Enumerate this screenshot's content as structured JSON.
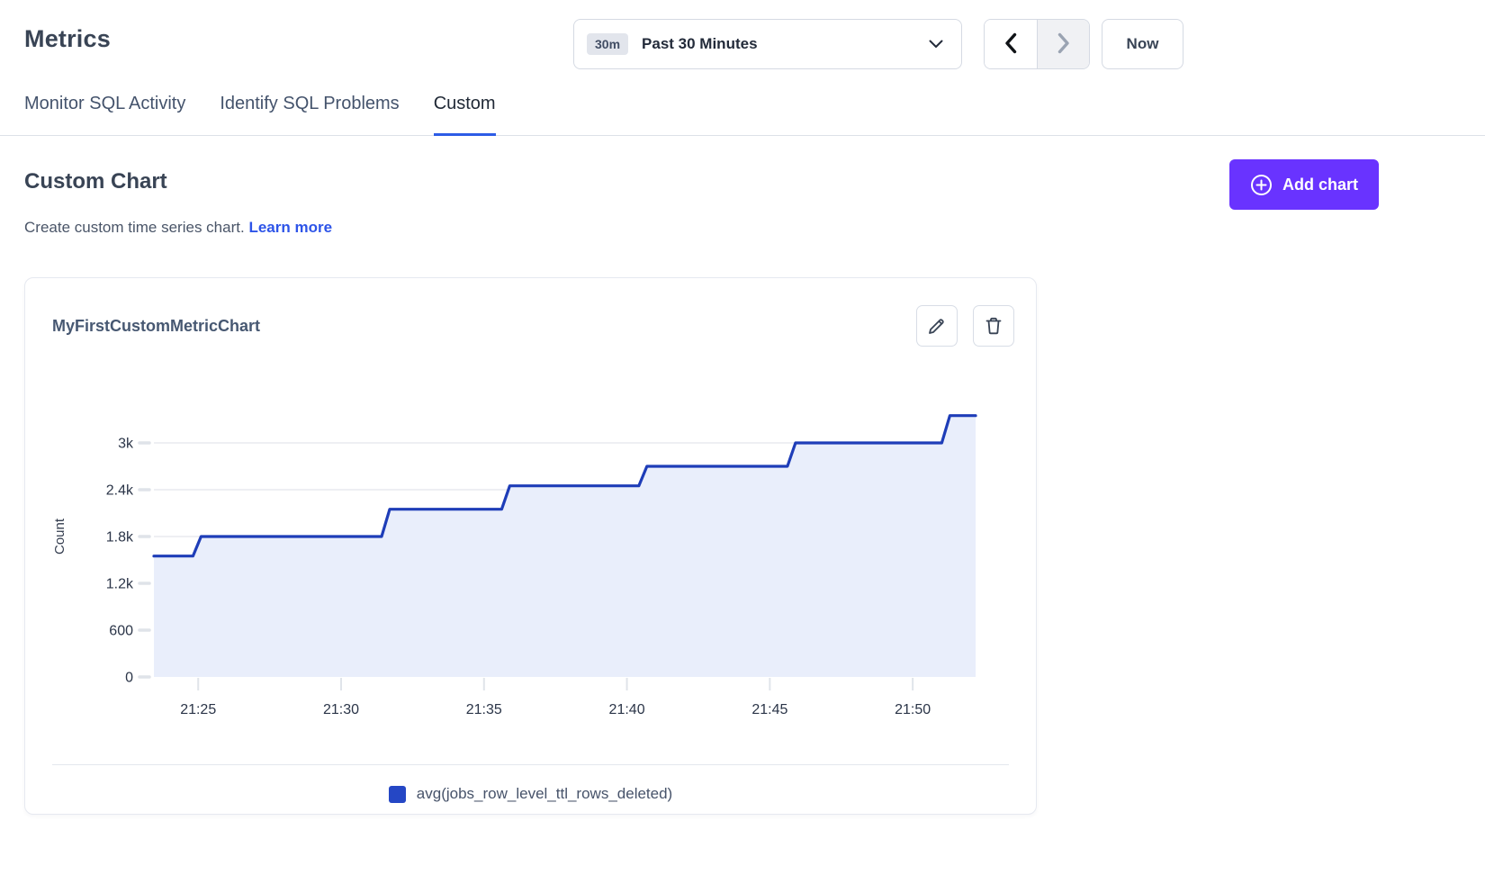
{
  "header": {
    "title": "Metrics",
    "time_picker": {
      "badge": "30m",
      "label": "Past 30 Minutes"
    },
    "now_label": "Now"
  },
  "tabs": [
    {
      "label": "Monitor SQL Activity",
      "active": false
    },
    {
      "label": "Identify SQL Problems",
      "active": false
    },
    {
      "label": "Custom",
      "active": true
    }
  ],
  "section": {
    "title": "Custom Chart",
    "description": "Create custom time series chart.",
    "learn_more_label": "Learn more",
    "add_chart_label": "Add chart"
  },
  "chart_card": {
    "title": "MyFirstCustomMetricChart",
    "legend": [
      {
        "label": "avg(jobs_row_level_ttl_rows_deleted)",
        "color": "#2547c5"
      }
    ]
  },
  "colors": {
    "accent_purple": "#6933ff",
    "tab_active_underline": "#2d5ce6",
    "link_blue": "#2d54e8",
    "chart_line_blue": "#1e3db8",
    "chart_fill_blue": "#e9eefb",
    "grid_gray": "#e8eaef"
  },
  "chart_data": {
    "type": "area",
    "step": true,
    "title": "MyFirstCustomMetricChart",
    "xlabel": "",
    "ylabel": "Count",
    "x_unit": "time of day (HH:MM), stored as minutes after 21:00",
    "xlim_minutes": [
      23.45,
      52.2
    ],
    "ylim": [
      0,
      3600
    ],
    "grid": true,
    "legend_position": "bottom",
    "x_ticks": [
      {
        "m": 25,
        "label": "21:25"
      },
      {
        "m": 30,
        "label": "21:30"
      },
      {
        "m": 35,
        "label": "21:35"
      },
      {
        "m": 40,
        "label": "21:40"
      },
      {
        "m": 45,
        "label": "21:45"
      },
      {
        "m": 50,
        "label": "21:50"
      }
    ],
    "y_ticks": [
      {
        "v": 0,
        "label": "0"
      },
      {
        "v": 600,
        "label": "600"
      },
      {
        "v": 1200,
        "label": "1.2k"
      },
      {
        "v": 1800,
        "label": "1.8k"
      },
      {
        "v": 2400,
        "label": "2.4k"
      },
      {
        "v": 3000,
        "label": "3k"
      }
    ],
    "series": [
      {
        "name": "avg(jobs_row_level_ttl_rows_deleted)",
        "color": "#1e3db8",
        "fill": "#e9eefb",
        "points": [
          {
            "m": 23.45,
            "v": 1550
          },
          {
            "m": 25.1,
            "v": 1800
          },
          {
            "m": 31.7,
            "v": 2150
          },
          {
            "m": 35.9,
            "v": 2450
          },
          {
            "m": 40.7,
            "v": 2700
          },
          {
            "m": 45.9,
            "v": 3000
          },
          {
            "m": 51.3,
            "v": 3350
          },
          {
            "m": 52.2,
            "v": 3350
          }
        ]
      }
    ]
  }
}
